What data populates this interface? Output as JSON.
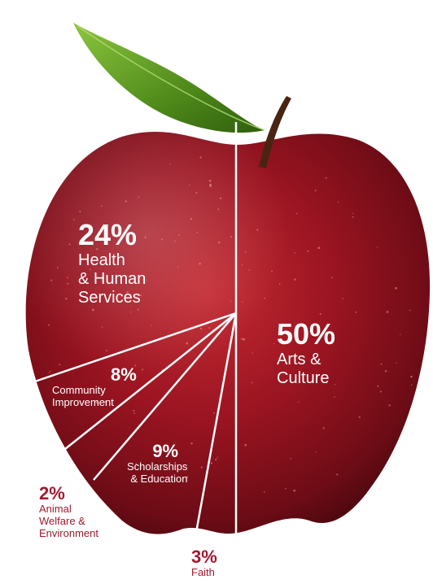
{
  "chart_data": {
    "type": "pie",
    "slices": [
      {
        "percent_label": "50%",
        "value": 50,
        "category": "Arts &\nCulture"
      },
      {
        "percent_label": "24%",
        "value": 24,
        "category": "Health\n& Human\nServices"
      },
      {
        "percent_label": "8%",
        "value": 8,
        "category": "Community\nImprovement"
      },
      {
        "percent_label": "9%",
        "value": 9,
        "category": "Scholarships\n& Education"
      },
      {
        "percent_label": "2%",
        "value": 2,
        "category": "Animal\nWelfare &\nEnvironment"
      },
      {
        "percent_label": "3%",
        "value": 3,
        "category": "Faith"
      }
    ],
    "colors": {
      "apple": "#8e1020",
      "accent_text": "#a3182f",
      "leaf": "#5f9a1e",
      "divider": "#ffffff"
    }
  }
}
